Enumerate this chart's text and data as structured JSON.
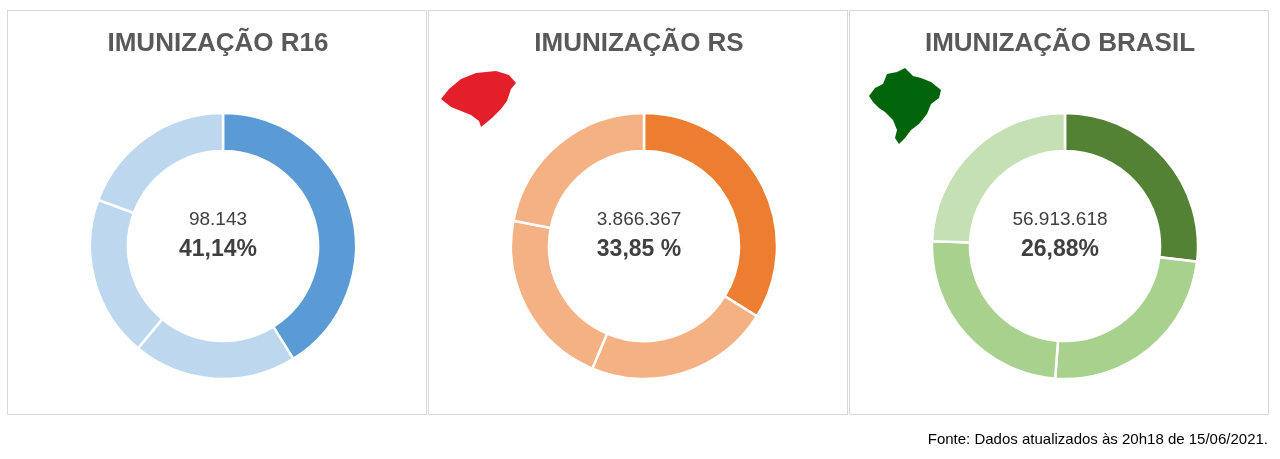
{
  "chart_data": [
    {
      "type": "donut",
      "title": "IMUNIZAÇÃO R16",
      "categories": [
        null,
        null,
        null,
        null
      ],
      "values": [
        41.14,
        19.9,
        19.6,
        19.36
      ],
      "colors": [
        "#5b9bd5",
        "#bdd7ee",
        "#bdd7ee",
        "#bdd7ee"
      ],
      "annotations": [
        "98.143",
        "41,14%"
      ]
    },
    {
      "type": "donut",
      "title": "IMUNIZAÇÃO RS",
      "categories": [
        null,
        null,
        null,
        null
      ],
      "values": [
        33.85,
        22.5,
        21.7,
        21.95
      ],
      "colors": [
        "#ed7d31",
        "#f4b183",
        "#f4b183",
        "#f4b183"
      ],
      "annotations": [
        "3.866.367",
        "33,85 %"
      ]
    },
    {
      "type": "donut",
      "title": "IMUNIZAÇÃO BRASIL",
      "categories": [
        null,
        null,
        null,
        null
      ],
      "values": [
        26.88,
        24.3,
        24.4,
        24.42
      ],
      "colors": [
        "#548235",
        "#a9d18e",
        "#a9d18e",
        "#c5e0b4"
      ],
      "annotations": [
        "56.913.618",
        "26,88%",
        "Fonte: Dados atualizados às 20h18 de 15/06/2021."
      ]
    }
  ]
}
